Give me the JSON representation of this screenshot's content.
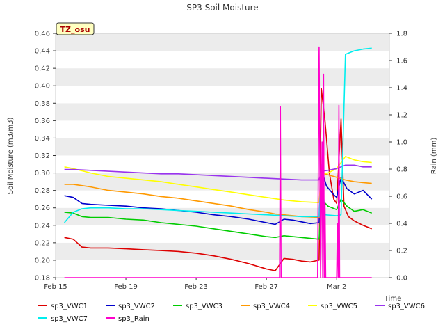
{
  "chart_data": {
    "type": "line",
    "title": "SP3 Soil Moisture",
    "site_badge": "TZ_osu",
    "xlabel": "Time",
    "ylabel": "Soil Moisture (m3/m3)",
    "y2label": "Rain (mm)",
    "x_start": "2024-02-15",
    "x_end": "2024-03-05",
    "xticks": [
      {
        "date": "2024-02-15",
        "label": "Feb 15"
      },
      {
        "date": "2024-02-19",
        "label": "Feb 19"
      },
      {
        "date": "2024-02-23",
        "label": "Feb 23"
      },
      {
        "date": "2024-02-27",
        "label": "Feb 27"
      },
      {
        "date": "2024-03-02",
        "label": "Mar 2"
      }
    ],
    "ylim": [
      0.18,
      0.46
    ],
    "yticks": [
      "0.18",
      "0.20",
      "0.22",
      "0.24",
      "0.26",
      "0.28",
      "0.30",
      "0.32",
      "0.34",
      "0.36",
      "0.38",
      "0.40",
      "0.42",
      "0.44",
      "0.46"
    ],
    "y2lim": [
      0.0,
      1.8
    ],
    "y2ticks": [
      "0.0",
      "0.2",
      "0.4",
      "0.6",
      "0.8",
      "1.0",
      "1.2",
      "1.4",
      "1.6",
      "1.8"
    ],
    "grid": "horizontal bands",
    "legend_position": "bottom",
    "series": [
      {
        "name": "sp3_VWC1",
        "color": "#dd0000",
        "axis": "left",
        "points": [
          [
            "2024-02-15T12:00",
            0.226
          ],
          [
            "2024-02-16T00:00",
            0.224
          ],
          [
            "2024-02-16T12:00",
            0.215
          ],
          [
            "2024-02-17T00:00",
            0.214
          ],
          [
            "2024-02-18T00:00",
            0.214
          ],
          [
            "2024-02-19T00:00",
            0.213
          ],
          [
            "2024-02-20T00:00",
            0.212
          ],
          [
            "2024-02-21T00:00",
            0.211
          ],
          [
            "2024-02-22T00:00",
            0.21
          ],
          [
            "2024-02-23T00:00",
            0.208
          ],
          [
            "2024-02-24T00:00",
            0.205
          ],
          [
            "2024-02-25T00:00",
            0.201
          ],
          [
            "2024-02-26T00:00",
            0.196
          ],
          [
            "2024-02-27T00:00",
            0.19
          ],
          [
            "2024-02-27T12:00",
            0.188
          ],
          [
            "2024-02-28T00:00",
            0.202
          ],
          [
            "2024-02-28T12:00",
            0.201
          ],
          [
            "2024-02-29T00:00",
            0.199
          ],
          [
            "2024-02-29T12:00",
            0.198
          ],
          [
            "2024-03-01T00:00",
            0.2
          ],
          [
            "2024-03-01T03:00",
            0.397
          ],
          [
            "2024-03-01T08:00",
            0.36
          ],
          [
            "2024-03-01T14:00",
            0.3
          ],
          [
            "2024-03-01T20:00",
            0.27
          ],
          [
            "2024-03-02T00:00",
            0.265
          ],
          [
            "2024-03-02T06:00",
            0.362
          ],
          [
            "2024-03-02T10:00",
            0.262
          ],
          [
            "2024-03-02T16:00",
            0.25
          ],
          [
            "2024-03-03T00:00",
            0.245
          ],
          [
            "2024-03-03T12:00",
            0.24
          ],
          [
            "2024-03-04T00:00",
            0.236
          ]
        ]
      },
      {
        "name": "sp3_VWC2",
        "color": "#0000cc",
        "axis": "left",
        "points": [
          [
            "2024-02-15T12:00",
            0.274
          ],
          [
            "2024-02-16T00:00",
            0.272
          ],
          [
            "2024-02-16T12:00",
            0.265
          ],
          [
            "2024-02-17T00:00",
            0.264
          ],
          [
            "2024-02-18T00:00",
            0.263
          ],
          [
            "2024-02-19T00:00",
            0.262
          ],
          [
            "2024-02-20T00:00",
            0.26
          ],
          [
            "2024-02-21T00:00",
            0.259
          ],
          [
            "2024-02-22T00:00",
            0.257
          ],
          [
            "2024-02-23T00:00",
            0.255
          ],
          [
            "2024-02-24T00:00",
            0.252
          ],
          [
            "2024-02-25T00:00",
            0.25
          ],
          [
            "2024-02-26T00:00",
            0.247
          ],
          [
            "2024-02-27T00:00",
            0.243
          ],
          [
            "2024-02-27T12:00",
            0.241
          ],
          [
            "2024-02-28T00:00",
            0.247
          ],
          [
            "2024-02-28T12:00",
            0.246
          ],
          [
            "2024-02-29T00:00",
            0.244
          ],
          [
            "2024-02-29T12:00",
            0.242
          ],
          [
            "2024-03-01T00:00",
            0.243
          ],
          [
            "2024-03-01T03:00",
            0.305
          ],
          [
            "2024-03-01T10:00",
            0.285
          ],
          [
            "2024-03-01T20:00",
            0.275
          ],
          [
            "2024-03-02T00:00",
            0.272
          ],
          [
            "2024-03-02T06:00",
            0.295
          ],
          [
            "2024-03-02T14:00",
            0.282
          ],
          [
            "2024-03-03T00:00",
            0.276
          ],
          [
            "2024-03-03T12:00",
            0.28
          ],
          [
            "2024-03-04T00:00",
            0.27
          ]
        ]
      },
      {
        "name": "sp3_VWC3",
        "color": "#00cc00",
        "axis": "left",
        "points": [
          [
            "2024-02-15T12:00",
            0.255
          ],
          [
            "2024-02-16T00:00",
            0.254
          ],
          [
            "2024-02-16T12:00",
            0.25
          ],
          [
            "2024-02-17T00:00",
            0.249
          ],
          [
            "2024-02-18T00:00",
            0.249
          ],
          [
            "2024-02-19T00:00",
            0.247
          ],
          [
            "2024-02-20T00:00",
            0.246
          ],
          [
            "2024-02-21T00:00",
            0.243
          ],
          [
            "2024-02-22T00:00",
            0.241
          ],
          [
            "2024-02-23T00:00",
            0.239
          ],
          [
            "2024-02-24T00:00",
            0.236
          ],
          [
            "2024-02-25T00:00",
            0.233
          ],
          [
            "2024-02-26T00:00",
            0.23
          ],
          [
            "2024-02-27T00:00",
            0.227
          ],
          [
            "2024-02-27T12:00",
            0.226
          ],
          [
            "2024-02-28T00:00",
            0.228
          ],
          [
            "2024-02-28T12:00",
            0.227
          ],
          [
            "2024-02-29T00:00",
            0.226
          ],
          [
            "2024-02-29T12:00",
            0.225
          ],
          [
            "2024-03-01T00:00",
            0.224
          ],
          [
            "2024-03-01T03:00",
            0.27
          ],
          [
            "2024-03-01T12:00",
            0.262
          ],
          [
            "2024-03-02T00:00",
            0.258
          ],
          [
            "2024-03-02T06:00",
            0.27
          ],
          [
            "2024-03-02T14:00",
            0.262
          ],
          [
            "2024-03-03T00:00",
            0.256
          ],
          [
            "2024-03-03T12:00",
            0.258
          ],
          [
            "2024-03-04T00:00",
            0.254
          ]
        ]
      },
      {
        "name": "sp3_VWC4",
        "color": "#ff9900",
        "axis": "left",
        "points": [
          [
            "2024-02-15T12:00",
            0.287
          ],
          [
            "2024-02-16T00:00",
            0.287
          ],
          [
            "2024-02-17T00:00",
            0.284
          ],
          [
            "2024-02-18T00:00",
            0.28
          ],
          [
            "2024-02-19T00:00",
            0.278
          ],
          [
            "2024-02-20T00:00",
            0.276
          ],
          [
            "2024-02-21T00:00",
            0.273
          ],
          [
            "2024-02-22T00:00",
            0.271
          ],
          [
            "2024-02-23T00:00",
            0.268
          ],
          [
            "2024-02-24T00:00",
            0.265
          ],
          [
            "2024-02-25T00:00",
            0.262
          ],
          [
            "2024-02-26T00:00",
            0.258
          ],
          [
            "2024-02-27T00:00",
            0.255
          ],
          [
            "2024-02-27T12:00",
            0.253
          ],
          [
            "2024-02-28T00:00",
            0.252
          ],
          [
            "2024-02-29T00:00",
            0.25
          ],
          [
            "2024-03-01T00:00",
            0.249
          ],
          [
            "2024-03-01T03:00",
            0.3
          ],
          [
            "2024-03-01T12:00",
            0.298
          ],
          [
            "2024-03-02T00:00",
            0.295
          ],
          [
            "2024-03-02T12:00",
            0.292
          ],
          [
            "2024-03-03T00:00",
            0.29
          ],
          [
            "2024-03-03T12:00",
            0.289
          ],
          [
            "2024-03-04T00:00",
            0.288
          ]
        ]
      },
      {
        "name": "sp3_VWC5",
        "color": "#ffff00",
        "axis": "left",
        "points": [
          [
            "2024-02-15T12:00",
            0.307
          ],
          [
            "2024-02-16T00:00",
            0.305
          ],
          [
            "2024-02-17T00:00",
            0.3
          ],
          [
            "2024-02-18T00:00",
            0.296
          ],
          [
            "2024-02-19T00:00",
            0.294
          ],
          [
            "2024-02-20T00:00",
            0.292
          ],
          [
            "2024-02-21T00:00",
            0.29
          ],
          [
            "2024-02-22T00:00",
            0.287
          ],
          [
            "2024-02-23T00:00",
            0.284
          ],
          [
            "2024-02-24T00:00",
            0.281
          ],
          [
            "2024-02-25T00:00",
            0.278
          ],
          [
            "2024-02-26T00:00",
            0.275
          ],
          [
            "2024-02-27T00:00",
            0.272
          ],
          [
            "2024-02-28T00:00",
            0.269
          ],
          [
            "2024-02-29T00:00",
            0.267
          ],
          [
            "2024-03-01T00:00",
            0.266
          ],
          [
            "2024-03-01T03:00",
            0.298
          ],
          [
            "2024-03-01T12:00",
            0.3
          ],
          [
            "2024-03-02T00:00",
            0.305
          ],
          [
            "2024-03-02T12:00",
            0.319
          ],
          [
            "2024-03-03T00:00",
            0.315
          ],
          [
            "2024-03-03T12:00",
            0.313
          ],
          [
            "2024-03-04T00:00",
            0.312
          ]
        ]
      },
      {
        "name": "sp3_VWC6",
        "color": "#9933ee",
        "axis": "left",
        "points": [
          [
            "2024-02-15T12:00",
            0.304
          ],
          [
            "2024-02-16T00:00",
            0.304
          ],
          [
            "2024-02-17T00:00",
            0.303
          ],
          [
            "2024-02-18T00:00",
            0.302
          ],
          [
            "2024-02-19T00:00",
            0.301
          ],
          [
            "2024-02-20T00:00",
            0.3
          ],
          [
            "2024-02-21T00:00",
            0.299
          ],
          [
            "2024-02-22T00:00",
            0.299
          ],
          [
            "2024-02-23T00:00",
            0.298
          ],
          [
            "2024-02-24T00:00",
            0.297
          ],
          [
            "2024-02-25T00:00",
            0.296
          ],
          [
            "2024-02-26T00:00",
            0.295
          ],
          [
            "2024-02-27T00:00",
            0.294
          ],
          [
            "2024-02-28T00:00",
            0.293
          ],
          [
            "2024-02-29T00:00",
            0.292
          ],
          [
            "2024-03-01T00:00",
            0.292
          ],
          [
            "2024-03-01T03:00",
            0.302
          ],
          [
            "2024-03-01T12:00",
            0.303
          ],
          [
            "2024-03-02T00:00",
            0.305
          ],
          [
            "2024-03-02T12:00",
            0.309
          ],
          [
            "2024-03-03T00:00",
            0.309
          ],
          [
            "2024-03-03T12:00",
            0.307
          ],
          [
            "2024-03-04T00:00",
            0.307
          ]
        ]
      },
      {
        "name": "sp3_VWC7",
        "color": "#00eeee",
        "axis": "left",
        "points": [
          [
            "2024-02-15T12:00",
            0.243
          ],
          [
            "2024-02-16T00:00",
            0.255
          ],
          [
            "2024-02-16T12:00",
            0.259
          ],
          [
            "2024-02-17T00:00",
            0.26
          ],
          [
            "2024-02-18T00:00",
            0.26
          ],
          [
            "2024-02-19T00:00",
            0.259
          ],
          [
            "2024-02-20T00:00",
            0.259
          ],
          [
            "2024-02-21T00:00",
            0.258
          ],
          [
            "2024-02-22T00:00",
            0.257
          ],
          [
            "2024-02-23T00:00",
            0.256
          ],
          [
            "2024-02-24T00:00",
            0.255
          ],
          [
            "2024-02-25T00:00",
            0.254
          ],
          [
            "2024-02-26T00:00",
            0.253
          ],
          [
            "2024-02-27T00:00",
            0.252
          ],
          [
            "2024-02-28T00:00",
            0.251
          ],
          [
            "2024-02-29T00:00",
            0.25
          ],
          [
            "2024-03-01T00:00",
            0.25
          ],
          [
            "2024-03-01T03:00",
            0.31
          ],
          [
            "2024-03-01T08:00",
            0.252
          ],
          [
            "2024-03-02T00:00",
            0.251
          ],
          [
            "2024-03-02T06:00",
            0.252
          ],
          [
            "2024-03-02T12:00",
            0.436
          ],
          [
            "2024-03-03T00:00",
            0.44
          ],
          [
            "2024-03-03T12:00",
            0.442
          ],
          [
            "2024-03-04T00:00",
            0.443
          ]
        ]
      },
      {
        "name": "sp3_Rain",
        "color": "#ff00cc",
        "axis": "right",
        "points": [
          [
            "2024-02-15T12:00",
            0.0
          ],
          [
            "2024-02-27T18:00",
            0.0
          ],
          [
            "2024-02-27T19:00",
            1.26
          ],
          [
            "2024-02-27T20:00",
            0.0
          ],
          [
            "2024-02-29T22:00",
            0.0
          ],
          [
            "2024-03-01T00:00",
            1.7
          ],
          [
            "2024-03-01T02:00",
            0.0
          ],
          [
            "2024-03-01T04:00",
            1.0
          ],
          [
            "2024-03-01T05:00",
            0.0
          ],
          [
            "2024-03-01T06:00",
            1.5
          ],
          [
            "2024-03-01T07:00",
            0.0
          ],
          [
            "2024-03-01T08:00",
            0.55
          ],
          [
            "2024-03-01T09:00",
            0.0
          ],
          [
            "2024-03-02T00:00",
            0.0
          ],
          [
            "2024-03-02T01:00",
            0.4
          ],
          [
            "2024-03-02T02:00",
            0.0
          ],
          [
            "2024-03-02T03:00",
            1.27
          ],
          [
            "2024-03-02T04:00",
            0.0
          ],
          [
            "2024-03-04T00:00",
            0.0
          ]
        ]
      }
    ]
  }
}
